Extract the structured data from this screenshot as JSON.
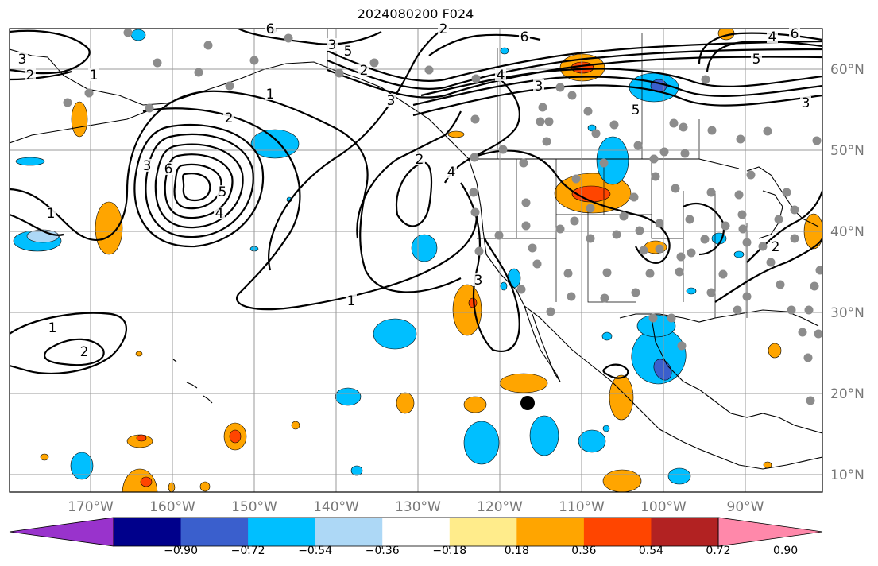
{
  "title": "2024080200 F024",
  "lon_labels": [
    "170°W",
    "160°W",
    "150°W",
    "140°W",
    "130°W",
    "120°W",
    "110°W",
    "100°W",
    "90°W"
  ],
  "lat_labels": [
    "60°N",
    "50°N",
    "40°N",
    "30°N",
    "20°N",
    "10°N"
  ],
  "colorbar": {
    "colors": [
      "#9933cc",
      "#00008b",
      "#3a5fcd",
      "#00bfff",
      "#add8f6",
      "#ffffff",
      "#ffec8b",
      "#ffa500",
      "#ff4500",
      "#b22222",
      "#ff88aa"
    ],
    "tick_labels": [
      "−0.90",
      "−0.72",
      "−0.54",
      "−0.36",
      "−0.18",
      "0.18",
      "0.36",
      "0.54",
      "0.72",
      "0.90"
    ]
  },
  "contour_labels": [
    "3",
    "2",
    "1",
    "1",
    "2",
    "3",
    "6",
    "5",
    "4",
    "1",
    "1",
    "2",
    "1",
    "2",
    "4",
    "3",
    "5",
    "2",
    "3",
    "6",
    "5",
    "4",
    "3",
    "6",
    "5",
    "4",
    "3",
    "2",
    "2",
    "6",
    "3"
  ],
  "colors": {
    "land_outline": "#000000",
    "grid": "#999999",
    "station_dot": "#8c8c8c",
    "contour": "#000000"
  }
}
